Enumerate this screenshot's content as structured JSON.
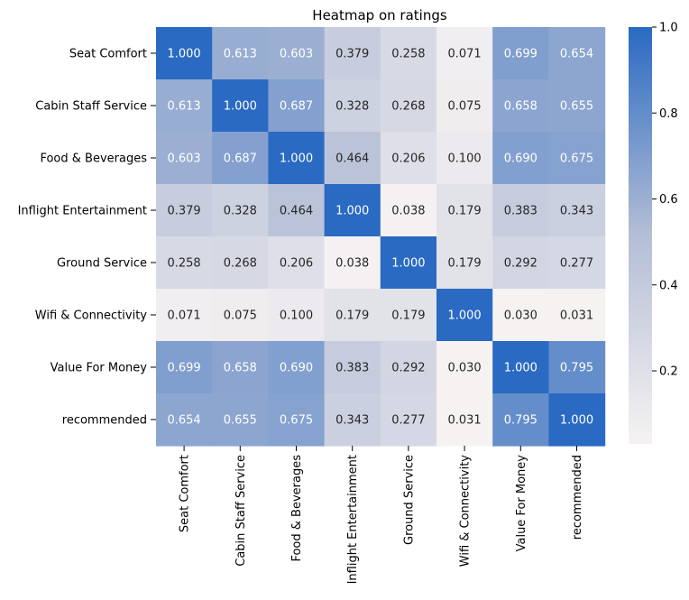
{
  "chart_data": {
    "type": "heatmap",
    "title": "Heatmap on ratings",
    "xlabel": "",
    "ylabel": "",
    "rows": [
      "Seat Comfort",
      "Cabin Staff Service",
      "Food & Beverages",
      "Inflight Entertainment",
      "Ground Service",
      "Wifi & Connectivity",
      "Value For Money",
      "recommended"
    ],
    "columns": [
      "Seat Comfort",
      "Cabin Staff Service",
      "Food & Beverages",
      "Inflight Entertainment",
      "Ground Service",
      "Wifi & Connectivity",
      "Value For Money",
      "recommended"
    ],
    "values": [
      [
        1.0,
        0.613,
        0.603,
        0.379,
        0.258,
        0.071,
        0.699,
        0.654
      ],
      [
        0.613,
        1.0,
        0.687,
        0.328,
        0.268,
        0.075,
        0.658,
        0.655
      ],
      [
        0.603,
        0.687,
        1.0,
        0.464,
        0.206,
        0.1,
        0.69,
        0.675
      ],
      [
        0.379,
        0.328,
        0.464,
        1.0,
        0.038,
        0.179,
        0.383,
        0.343
      ],
      [
        0.258,
        0.268,
        0.206,
        0.038,
        1.0,
        0.179,
        0.292,
        0.277
      ],
      [
        0.071,
        0.075,
        0.1,
        0.179,
        0.179,
        1.0,
        0.03,
        0.031
      ],
      [
        0.699,
        0.658,
        0.69,
        0.383,
        0.292,
        0.03,
        1.0,
        0.795
      ],
      [
        0.654,
        0.655,
        0.675,
        0.343,
        0.277,
        0.031,
        0.795,
        1.0
      ]
    ],
    "value_format": "0.000",
    "colorbar": {
      "range": [
        0.03,
        1.0
      ],
      "ticks": [
        0.2,
        0.4,
        0.6,
        0.8,
        1.0
      ],
      "tick_labels": [
        "0.2",
        "0.4",
        "0.6",
        "0.8",
        "1.0"
      ]
    },
    "colormap": {
      "low": "#f6f2f2",
      "mid": "#b4bed6",
      "high": "#2a6ac2"
    },
    "grid": false
  }
}
